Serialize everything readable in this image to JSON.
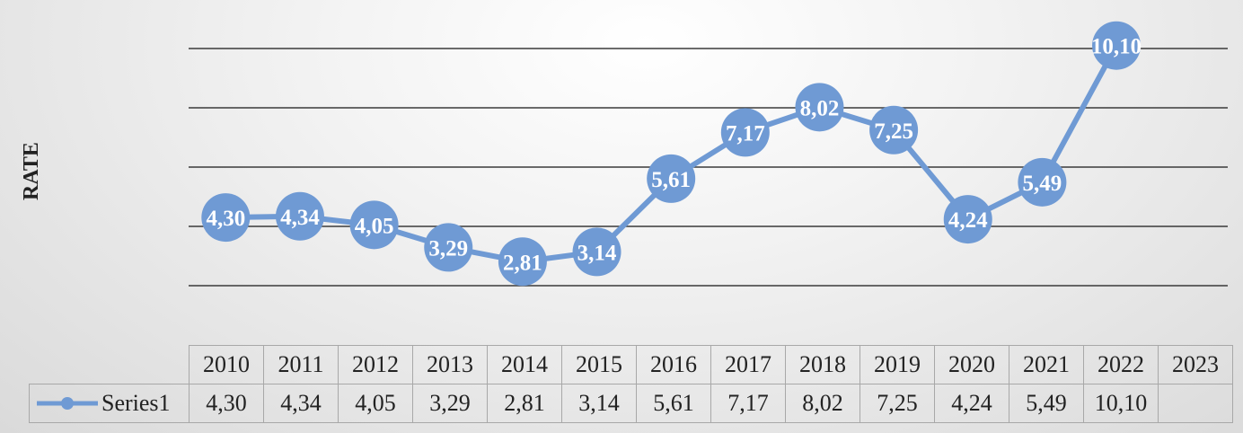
{
  "chart_data": {
    "type": "line",
    "ylabel": "RATE",
    "categories": [
      "2010",
      "2011",
      "2012",
      "2013",
      "2014",
      "2015",
      "2016",
      "2017",
      "2018",
      "2019",
      "2020",
      "2021",
      "2022",
      "2023"
    ],
    "series": [
      {
        "name": "Series1",
        "values": [
          4.3,
          4.34,
          4.05,
          3.29,
          2.81,
          3.14,
          5.61,
          7.17,
          8.02,
          7.25,
          4.24,
          5.49,
          10.1,
          null
        ],
        "labels": [
          "4,30",
          "4,34",
          "4,05",
          "3,29",
          "2,81",
          "3,14",
          "5,61",
          "7,17",
          "8,02",
          "7,25",
          "4,24",
          "5,49",
          "10,10",
          ""
        ],
        "color": "#6f9ad4"
      }
    ],
    "ylim": [
      0,
      12
    ],
    "gridlines": [
      2,
      4,
      6,
      8,
      10
    ],
    "grid": true,
    "legend": "data-table"
  }
}
